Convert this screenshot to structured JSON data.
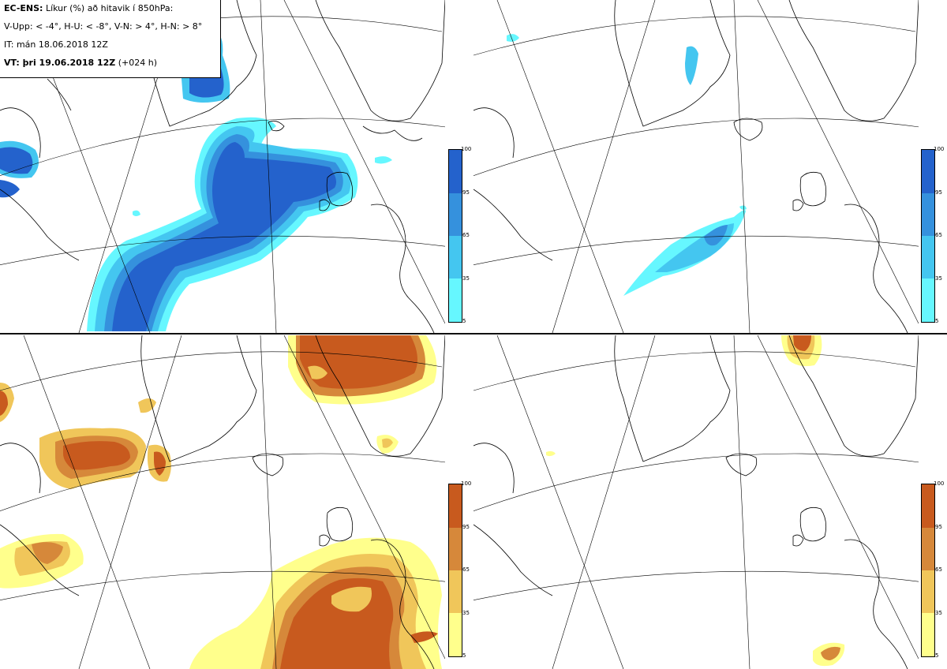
{
  "header": {
    "model_label": "EC-ENS:",
    "title_text": "Líkur (%) að hitavik í 850hPa:",
    "thresholds_text": "V-Upp: < -4°, H-U: < -8°, V-N: > 4°, H-N: > 8°",
    "init_time": "IT: mán 18.06.2018 12Z",
    "valid_label": "VT: þri 19.06.2018 12Z",
    "lead_time": "(+024 h)"
  },
  "panels": [
    {
      "id": "V-Upp",
      "threshold": "< -4°",
      "palette": "blue"
    },
    {
      "id": "H-U",
      "threshold": "< -8°",
      "palette": "blue"
    },
    {
      "id": "V-N",
      "threshold": "> 4°",
      "palette": "orange"
    },
    {
      "id": "H-N",
      "threshold": "> 8°",
      "palette": "orange"
    }
  ],
  "colorbar": {
    "ticks": [
      "100",
      "95",
      "65",
      "35",
      "5"
    ],
    "levels": [
      5,
      35,
      65,
      95,
      100
    ],
    "blue_colors": [
      "#66f7ff",
      "#44c6f0",
      "#3591dd",
      "#2462cc"
    ],
    "orange_colors": [
      "#ffff8c",
      "#f0c65a",
      "#d6883a",
      "#c85a1e"
    ]
  },
  "colors": {
    "blue_light": "#66f7ff",
    "blue_mid": "#44c6f0",
    "blue_dark": "#2462cc",
    "orange_light": "#ffff8c",
    "orange_mid": "#f0c65a",
    "orange_dark": "#c85a1e",
    "coast": "#000000",
    "grid": "#000000"
  }
}
